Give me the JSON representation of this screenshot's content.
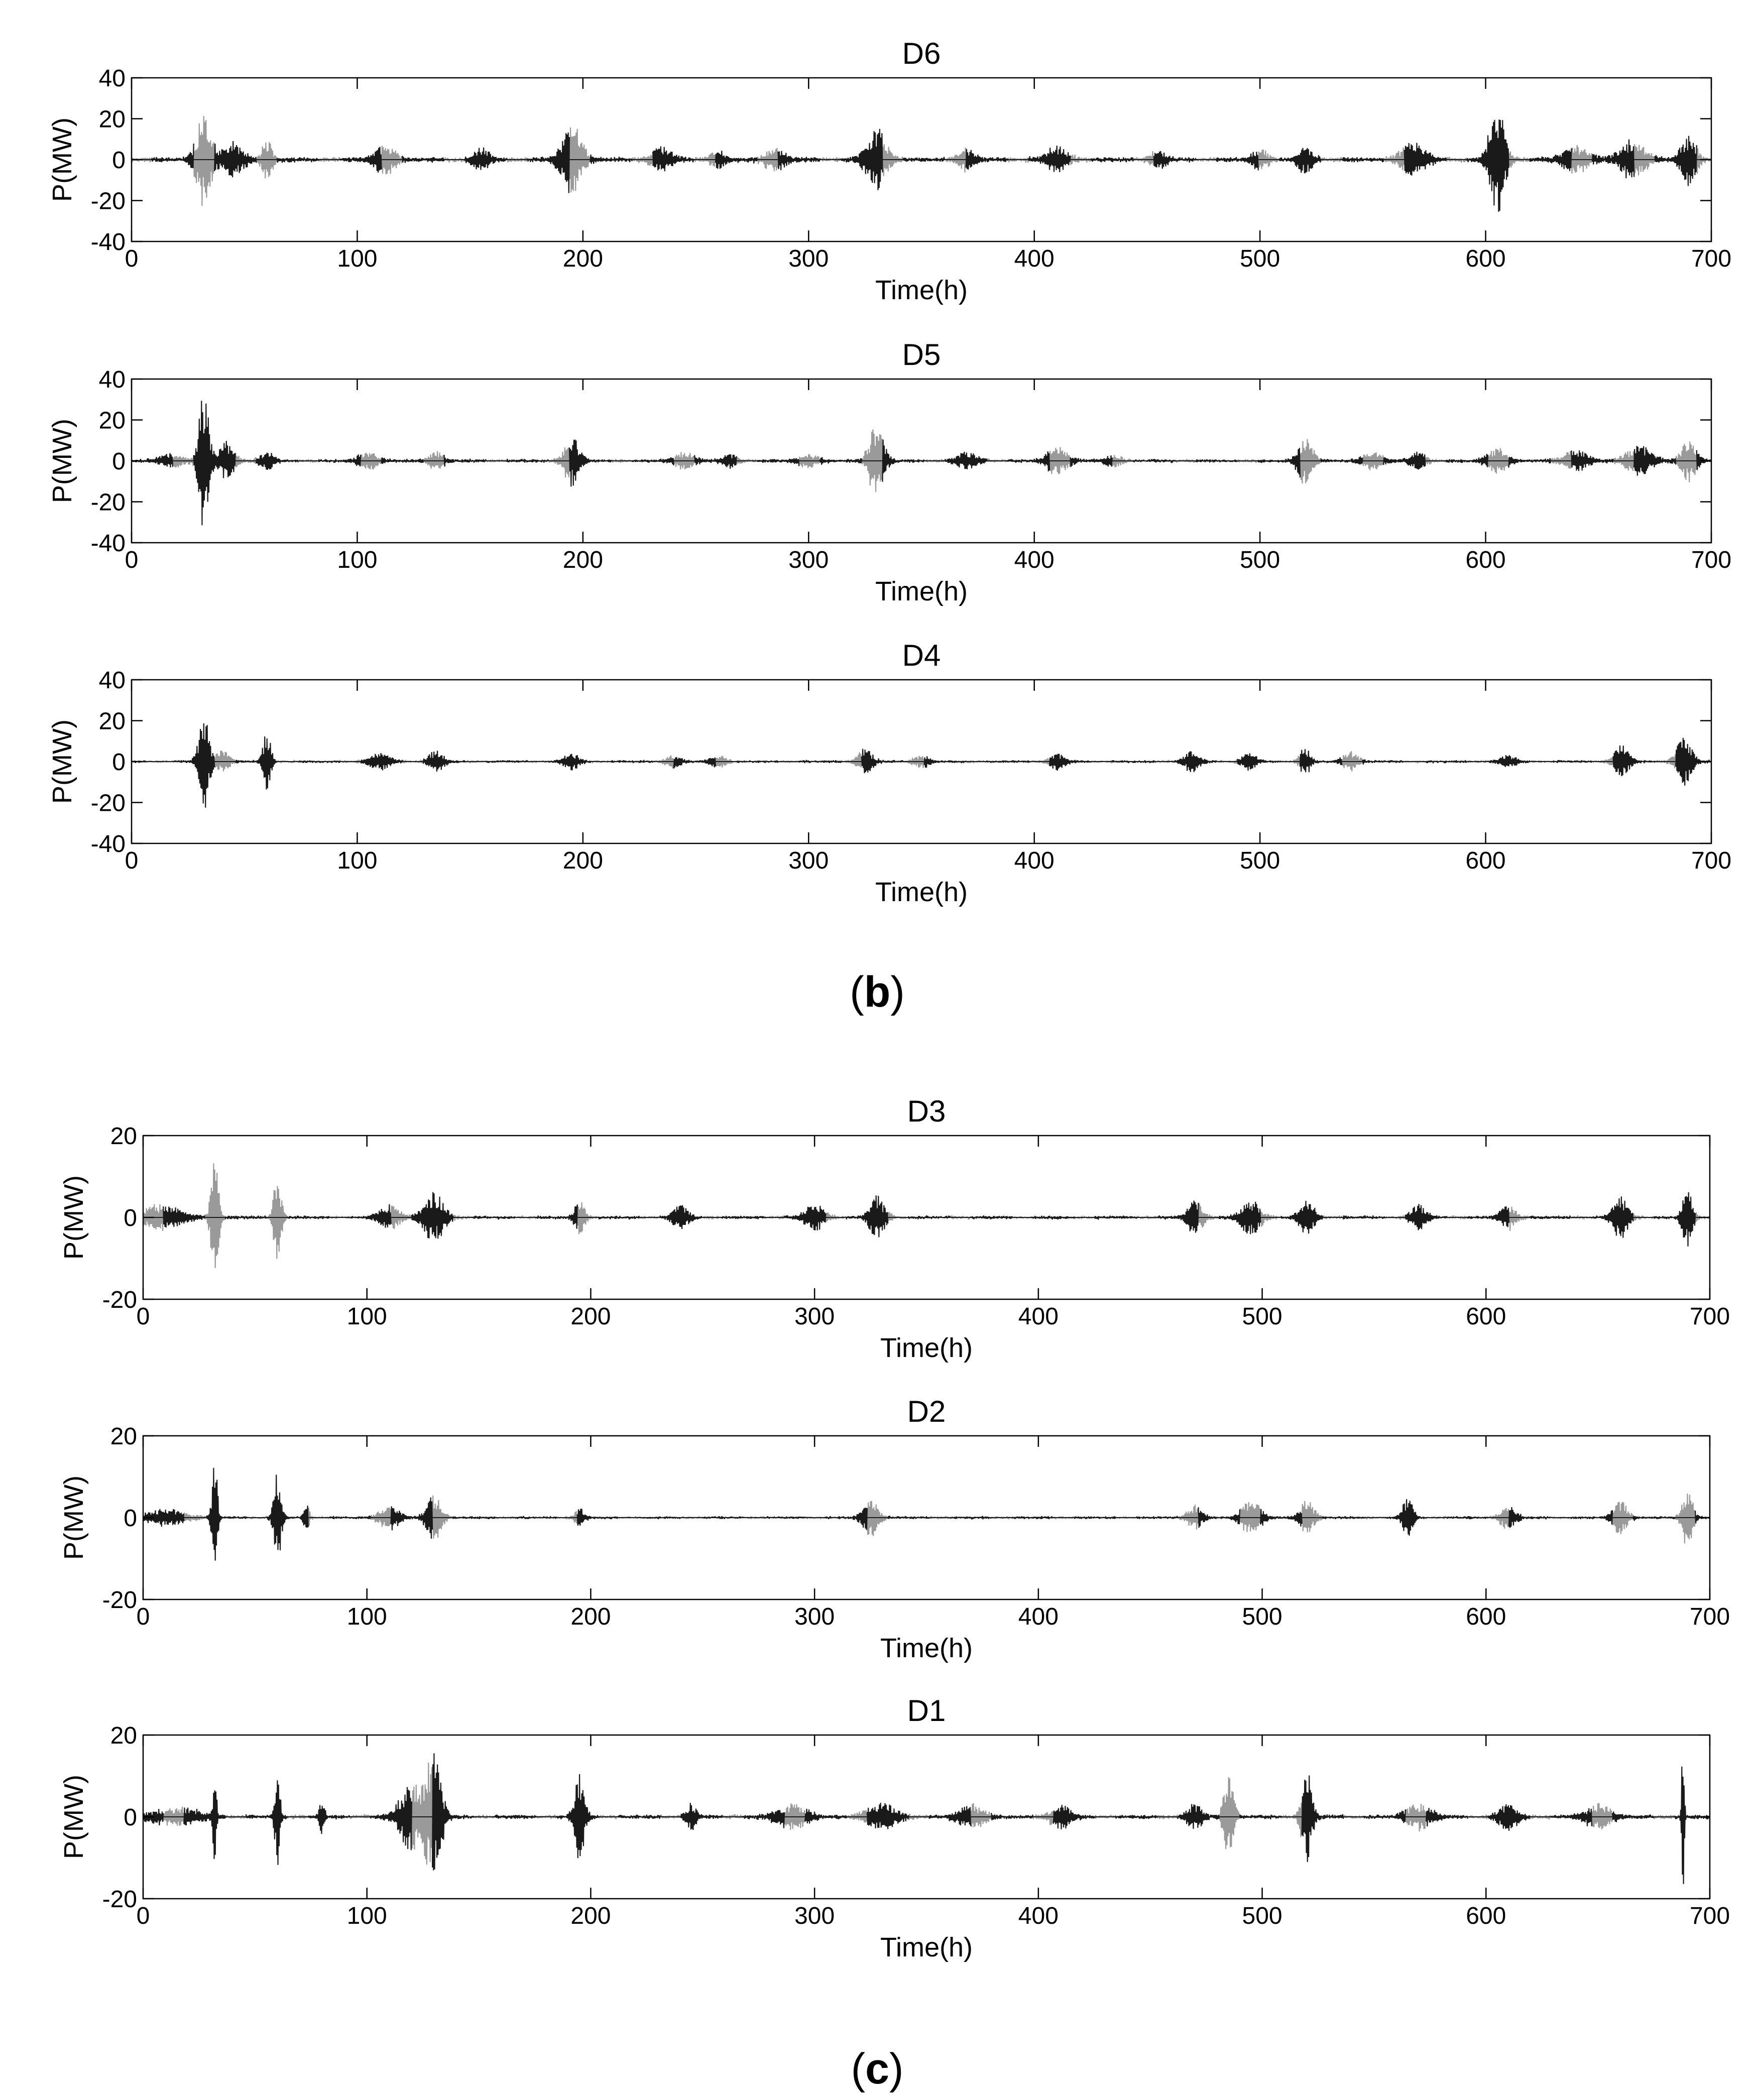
{
  "figure": {
    "captions": [
      {
        "open": "(",
        "letter": "b",
        "close": ")"
      },
      {
        "open": "(",
        "letter": "c",
        "close": ")"
      }
    ],
    "colors": {
      "trace_dark": "#1a1a1a",
      "trace_light": "#9a9a9a",
      "axis": "#000000"
    }
  },
  "chart_data": [
    {
      "type": "line",
      "title": "D6",
      "xlabel": "Time(h)",
      "ylabel": "P(MW)",
      "xlim": [
        0,
        700
      ],
      "ylim": [
        -40,
        40
      ],
      "xticks": [
        "0",
        "100",
        "200",
        "300",
        "400",
        "500",
        "600",
        "700"
      ],
      "yticks": [
        "40",
        "20",
        "0",
        "-20",
        "-40"
      ],
      "grid": false,
      "baseline_amplitude": 1.5,
      "noise_level": 0.3,
      "seed": 6,
      "bursts": [
        {
          "t": 32,
          "amp": 22,
          "width": 3
        },
        {
          "t": 45,
          "amp": 8,
          "width": 4
        },
        {
          "t": 60,
          "amp": 10,
          "width": 2
        },
        {
          "t": 112,
          "amp": 7,
          "width": 4
        },
        {
          "t": 155,
          "amp": 5,
          "width": 3
        },
        {
          "t": 195,
          "amp": 17,
          "width": 4
        },
        {
          "t": 235,
          "amp": 6,
          "width": 4
        },
        {
          "t": 260,
          "amp": 4,
          "width": 3
        },
        {
          "t": 285,
          "amp": 5,
          "width": 4
        },
        {
          "t": 330,
          "amp": 15,
          "width": 4
        },
        {
          "t": 370,
          "amp": 5,
          "width": 3
        },
        {
          "t": 410,
          "amp": 6,
          "width": 4
        },
        {
          "t": 455,
          "amp": 4,
          "width": 3
        },
        {
          "t": 500,
          "amp": 5,
          "width": 3
        },
        {
          "t": 520,
          "amp": 6,
          "width": 3
        },
        {
          "t": 568,
          "amp": 8,
          "width": 5
        },
        {
          "t": 605,
          "amp": 27,
          "width": 3
        },
        {
          "t": 640,
          "amp": 6,
          "width": 5
        },
        {
          "t": 665,
          "amp": 9,
          "width": 5
        },
        {
          "t": 690,
          "amp": 12,
          "width": 3
        }
      ]
    },
    {
      "type": "line",
      "title": "D5",
      "xlabel": "Time(h)",
      "ylabel": "P(MW)",
      "xlim": [
        0,
        700
      ],
      "ylim": [
        -40,
        40
      ],
      "xticks": [
        "0",
        "100",
        "200",
        "300",
        "400",
        "500",
        "600",
        "700"
      ],
      "yticks": [
        "40",
        "20",
        "0",
        "-20",
        "-40"
      ],
      "grid": false,
      "baseline_amplitude": 1.0,
      "noise_level": 0.25,
      "seed": 5,
      "bursts": [
        {
          "t": 18,
          "amp": 3,
          "width": 5
        },
        {
          "t": 32,
          "amp": 34,
          "width": 2
        },
        {
          "t": 42,
          "amp": 9,
          "width": 3
        },
        {
          "t": 60,
          "amp": 4,
          "width": 3
        },
        {
          "t": 105,
          "amp": 4,
          "width": 4
        },
        {
          "t": 135,
          "amp": 4,
          "width": 3
        },
        {
          "t": 195,
          "amp": 12,
          "width": 3
        },
        {
          "t": 245,
          "amp": 4,
          "width": 4
        },
        {
          "t": 265,
          "amp": 3,
          "width": 3
        },
        {
          "t": 300,
          "amp": 3,
          "width": 4
        },
        {
          "t": 330,
          "amp": 17,
          "width": 3
        },
        {
          "t": 370,
          "amp": 4,
          "width": 4
        },
        {
          "t": 410,
          "amp": 7,
          "width": 4
        },
        {
          "t": 435,
          "amp": 3,
          "width": 3
        },
        {
          "t": 520,
          "amp": 11,
          "width": 3
        },
        {
          "t": 550,
          "amp": 4,
          "width": 4
        },
        {
          "t": 570,
          "amp": 4,
          "width": 3
        },
        {
          "t": 605,
          "amp": 6,
          "width": 4
        },
        {
          "t": 640,
          "amp": 5,
          "width": 5
        },
        {
          "t": 668,
          "amp": 7,
          "width": 5
        },
        {
          "t": 690,
          "amp": 10,
          "width": 3
        }
      ]
    },
    {
      "type": "line",
      "title": "D4",
      "xlabel": "Time(h)",
      "ylabel": "P(MW)",
      "xlim": [
        0,
        700
      ],
      "ylim": [
        -40,
        40
      ],
      "xticks": [
        "0",
        "100",
        "200",
        "300",
        "400",
        "500",
        "600",
        "700"
      ],
      "yticks": [
        "40",
        "20",
        "0",
        "-20",
        "-40"
      ],
      "grid": false,
      "baseline_amplitude": 0.8,
      "noise_level": 0.2,
      "seed": 4,
      "bursts": [
        {
          "t": 32,
          "amp": 24,
          "width": 2
        },
        {
          "t": 40,
          "amp": 5,
          "width": 3
        },
        {
          "t": 60,
          "amp": 15,
          "width": 1.5
        },
        {
          "t": 110,
          "amp": 4,
          "width": 4
        },
        {
          "t": 135,
          "amp": 5,
          "width": 3
        },
        {
          "t": 195,
          "amp": 4,
          "width": 3
        },
        {
          "t": 240,
          "amp": 3,
          "width": 3
        },
        {
          "t": 260,
          "amp": 3,
          "width": 3
        },
        {
          "t": 325,
          "amp": 6,
          "width": 3
        },
        {
          "t": 350,
          "amp": 3,
          "width": 3
        },
        {
          "t": 410,
          "amp": 4,
          "width": 3
        },
        {
          "t": 470,
          "amp": 5,
          "width": 3
        },
        {
          "t": 495,
          "amp": 4,
          "width": 3
        },
        {
          "t": 520,
          "amp": 7,
          "width": 2
        },
        {
          "t": 540,
          "amp": 5,
          "width": 3
        },
        {
          "t": 610,
          "amp": 3,
          "width": 3
        },
        {
          "t": 660,
          "amp": 8,
          "width": 3
        },
        {
          "t": 688,
          "amp": 13,
          "width": 3
        }
      ]
    },
    {
      "type": "line",
      "title": "D3",
      "xlabel": "Time(h)",
      "ylabel": "P(MW)",
      "xlim": [
        0,
        700
      ],
      "ylim": [
        -20,
        20
      ],
      "xticks": [
        "0",
        "100",
        "200",
        "300",
        "400",
        "500",
        "600",
        "700"
      ],
      "yticks": [
        "20",
        "0",
        "-20"
      ],
      "grid": false,
      "baseline_amplitude": 0.5,
      "noise_level": 0.15,
      "seed": 3,
      "bursts": [
        {
          "t": 8,
          "amp": 3,
          "width": 8
        },
        {
          "t": 32,
          "amp": 15,
          "width": 1.5
        },
        {
          "t": 60,
          "amp": 11,
          "width": 1.5
        },
        {
          "t": 110,
          "amp": 3,
          "width": 4
        },
        {
          "t": 130,
          "amp": 6,
          "width": 4
        },
        {
          "t": 195,
          "amp": 4,
          "width": 2
        },
        {
          "t": 240,
          "amp": 3,
          "width": 3
        },
        {
          "t": 300,
          "amp": 3,
          "width": 4
        },
        {
          "t": 328,
          "amp": 5,
          "width": 3
        },
        {
          "t": 470,
          "amp": 4,
          "width": 3
        },
        {
          "t": 495,
          "amp": 4,
          "width": 4
        },
        {
          "t": 520,
          "amp": 4,
          "width": 3
        },
        {
          "t": 570,
          "amp": 3,
          "width": 3
        },
        {
          "t": 610,
          "amp": 3,
          "width": 3
        },
        {
          "t": 660,
          "amp": 5,
          "width": 3
        },
        {
          "t": 690,
          "amp": 7,
          "width": 2
        }
      ]
    },
    {
      "type": "line",
      "title": "D2",
      "xlabel": "Time(h)",
      "ylabel": "P(MW)",
      "xlim": [
        0,
        700
      ],
      "ylim": [
        -20,
        20
      ],
      "xticks": [
        "0",
        "100",
        "200",
        "300",
        "400",
        "500",
        "600",
        "700"
      ],
      "yticks": [
        "20",
        "0",
        "-20"
      ],
      "grid": false,
      "baseline_amplitude": 0.4,
      "noise_level": 0.12,
      "seed": 2,
      "bursts": [
        {
          "t": 10,
          "amp": 2,
          "width": 8
        },
        {
          "t": 32,
          "amp": 17,
          "width": 1
        },
        {
          "t": 60,
          "amp": 11,
          "width": 1.5
        },
        {
          "t": 73,
          "amp": 4,
          "width": 1
        },
        {
          "t": 110,
          "amp": 3,
          "width": 4
        },
        {
          "t": 130,
          "amp": 6,
          "width": 3
        },
        {
          "t": 195,
          "amp": 2,
          "width": 2
        },
        {
          "t": 325,
          "amp": 5,
          "width": 3
        },
        {
          "t": 470,
          "amp": 3,
          "width": 3
        },
        {
          "t": 495,
          "amp": 4,
          "width": 4
        },
        {
          "t": 520,
          "amp": 4,
          "width": 3
        },
        {
          "t": 565,
          "amp": 5,
          "width": 2
        },
        {
          "t": 610,
          "amp": 3,
          "width": 3
        },
        {
          "t": 660,
          "amp": 4,
          "width": 3
        },
        {
          "t": 690,
          "amp": 8,
          "width": 2
        }
      ]
    },
    {
      "type": "line",
      "title": "D1",
      "xlabel": "Time(h)",
      "ylabel": "P(MW)",
      "xlim": [
        0,
        700
      ],
      "ylim": [
        -20,
        20
      ],
      "xticks": [
        "0",
        "100",
        "200",
        "300",
        "400",
        "500",
        "600",
        "700"
      ],
      "yticks": [
        "20",
        "0",
        "-20"
      ],
      "grid": false,
      "baseline_amplitude": 0.6,
      "noise_level": 0.15,
      "seed": 1,
      "bursts": [
        {
          "t": 15,
          "amp": 2,
          "width": 10
        },
        {
          "t": 32,
          "amp": 16,
          "width": 0.6
        },
        {
          "t": 60,
          "amp": 12,
          "width": 1
        },
        {
          "t": 80,
          "amp": 5,
          "width": 1
        },
        {
          "t": 120,
          "amp": 8,
          "width": 5
        },
        {
          "t": 130,
          "amp": 15,
          "width": 3
        },
        {
          "t": 195,
          "amp": 11,
          "width": 2
        },
        {
          "t": 245,
          "amp": 3,
          "width": 2
        },
        {
          "t": 290,
          "amp": 3,
          "width": 6
        },
        {
          "t": 330,
          "amp": 3,
          "width": 6
        },
        {
          "t": 370,
          "amp": 3,
          "width": 5
        },
        {
          "t": 410,
          "amp": 3,
          "width": 4
        },
        {
          "t": 470,
          "amp": 3,
          "width": 3
        },
        {
          "t": 485,
          "amp": 10,
          "width": 2
        },
        {
          "t": 520,
          "amp": 12,
          "width": 2
        },
        {
          "t": 570,
          "amp": 3,
          "width": 5
        },
        {
          "t": 610,
          "amp": 3,
          "width": 4
        },
        {
          "t": 650,
          "amp": 3,
          "width": 5
        },
        {
          "t": 688,
          "amp": 20,
          "width": 0.5
        }
      ]
    }
  ]
}
